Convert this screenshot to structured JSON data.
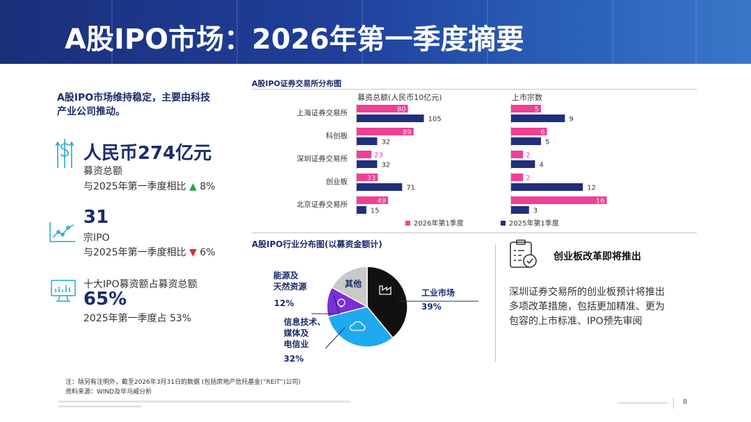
{
  "title": "A股IPO市场：2026年第一季度摘要",
  "left": {
    "intro": [
      "A股IPO市场维持稳定，主要由科技",
      "产业公司推动。"
    ],
    "stat1": {
      "value": "人民币274亿元",
      "label": "募资总额",
      "compare_prefix": "与2025年第一季度相比",
      "arrow": "▲",
      "change": "8%"
    },
    "stat2": {
      "value": "31",
      "label": "宗IPO",
      "compare_prefix": "与2025年第一季度相比",
      "arrow": "▼",
      "change": "6%"
    },
    "stat3": {
      "label": "十大IPO募资额占募资总额",
      "value": "65%",
      "compare": "2025年第一季度占 53%"
    }
  },
  "exchange_chart_title": "A股IPO证券交易所分布图",
  "chart_data": [
    {
      "type": "bar",
      "title": "募资总额(人民币10亿元)",
      "categories": [
        "上海证券交易所",
        "科创板",
        "深圳证券交易所",
        "创业板",
        "北京证券交易所"
      ],
      "series": [
        {
          "name": "2026年第1季度",
          "values": [
            80,
            89,
            23,
            33,
            49
          ]
        },
        {
          "name": "2025年第1季度",
          "values": [
            105,
            32,
            32,
            71,
            15
          ]
        }
      ]
    },
    {
      "type": "bar",
      "title": "上市宗数",
      "categories": [
        "上海证券交易所",
        "科创板",
        "深圳证券交易所",
        "创业板",
        "北京证券交易所"
      ],
      "series": [
        {
          "name": "2026年第1季度",
          "values": [
            5,
            6,
            2,
            2,
            16
          ]
        },
        {
          "name": "2025年第1季度",
          "values": [
            9,
            5,
            4,
            12,
            3
          ]
        }
      ]
    },
    {
      "type": "pie",
      "title": "A股IPO行业分布图(以募资金额计)",
      "slices": [
        {
          "name": "工业市场",
          "value": 39
        },
        {
          "name": "信息技术、媒体及电信业",
          "value": 32
        },
        {
          "name": "能源及天然资源",
          "value": 12
        },
        {
          "name": "其他",
          "value": 17
        }
      ]
    }
  ],
  "legend": {
    "s2026": "2026年第1季度",
    "s2025": "2025年第1季度"
  },
  "colors": {
    "pink": "#ef3f96",
    "navy": "#1e2f7d",
    "title_navy": "#1a2b6d",
    "black": "#111111",
    "cyan": "#1fa9f0",
    "purple": "#7a2fd4",
    "gray": "#c9c9c9",
    "green": "#2aa64a",
    "red": "#e0263a"
  },
  "pie_labels": {
    "industrial": {
      "name": "工业市场",
      "pct": "39%"
    },
    "tmt": {
      "lines": [
        "信息技术、",
        "媒体及",
        "电信业"
      ],
      "pct": "32%"
    },
    "energy": {
      "lines": [
        "能源及",
        "天然资源"
      ],
      "pct": "12%"
    },
    "other": {
      "name": "其他"
    }
  },
  "reform": {
    "title": "创业板改革即将推出",
    "lines": [
      "深圳证券交易所的创业板预计将推出",
      "多项改革措施，包括更加精准、更为",
      "包容的上市标准、IPO预先审阅"
    ]
  },
  "notes": {
    "line1": "注：除另有注明外，截至2026年3月31日的数据 (包括房地产信托基金(“REIT”)公司)",
    "line2": "资料来源：WIND及毕马威分析"
  },
  "page_number": "8"
}
